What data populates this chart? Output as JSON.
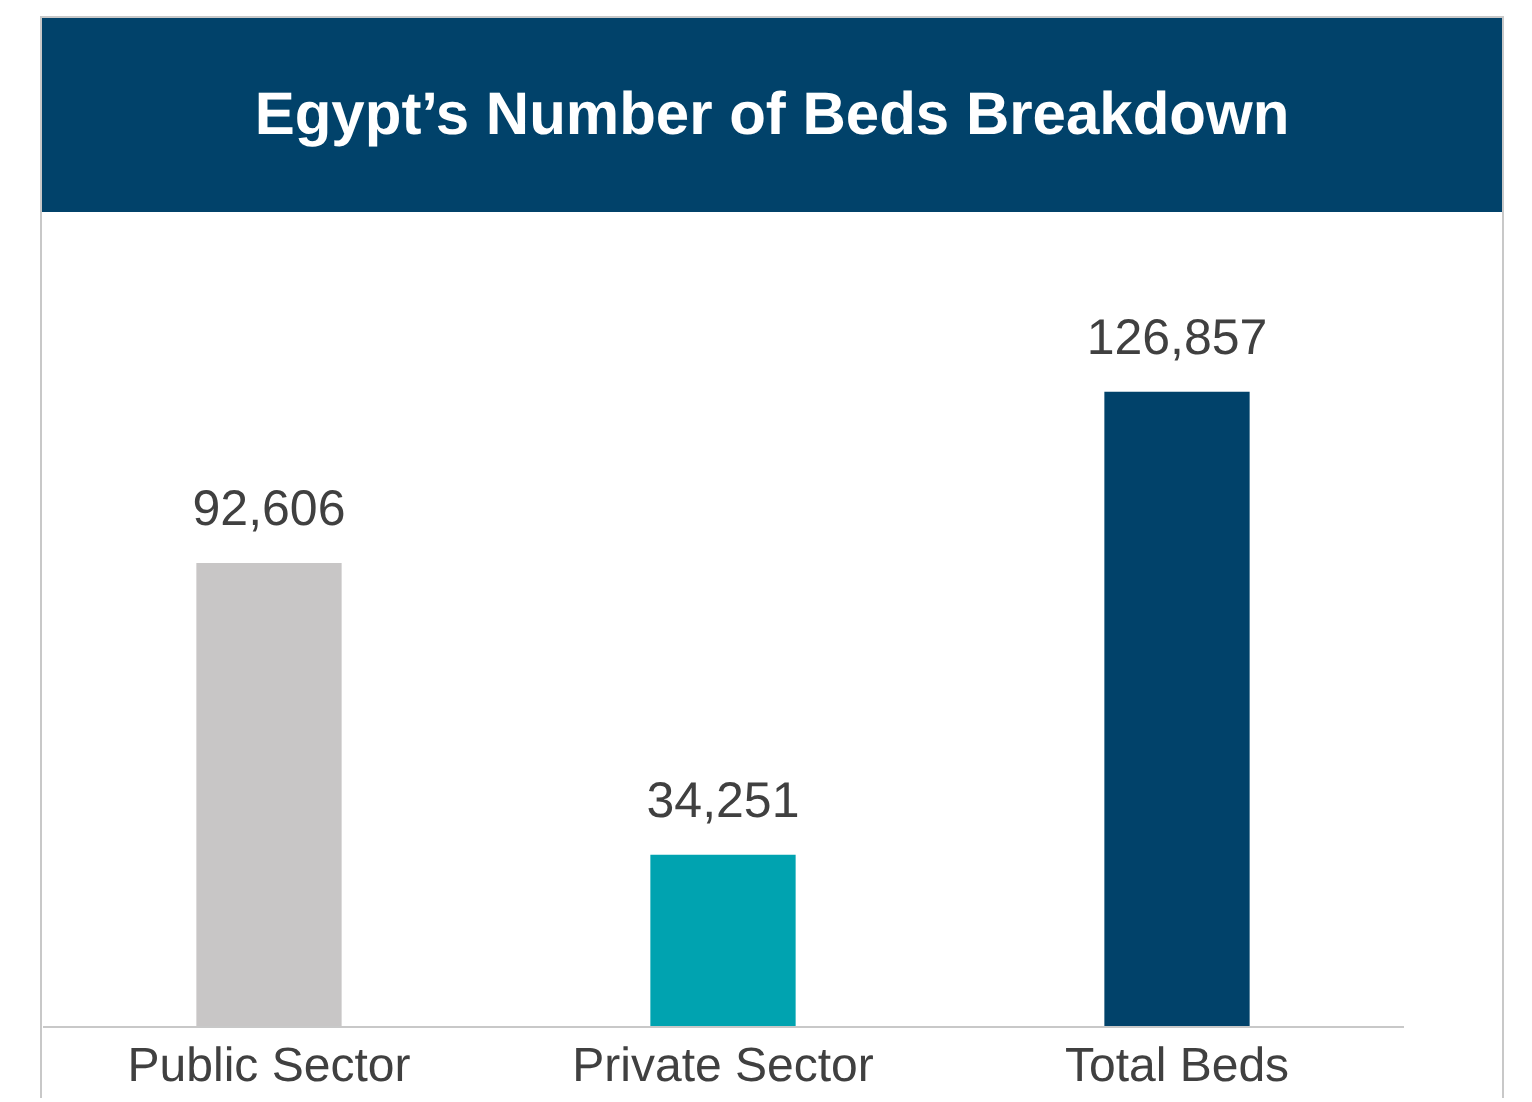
{
  "chart_data": {
    "type": "bar",
    "title": "Egypt’s Number of Beds Breakdown",
    "categories": [
      "Public Sector",
      "Private Sector",
      "Total Beds"
    ],
    "values": [
      92606,
      34251,
      126857
    ],
    "colors": [
      "#c8c6c6",
      "#00a3b0",
      "#01426a"
    ],
    "value_labels": [
      "92,606",
      "34,251",
      "126,857"
    ]
  }
}
